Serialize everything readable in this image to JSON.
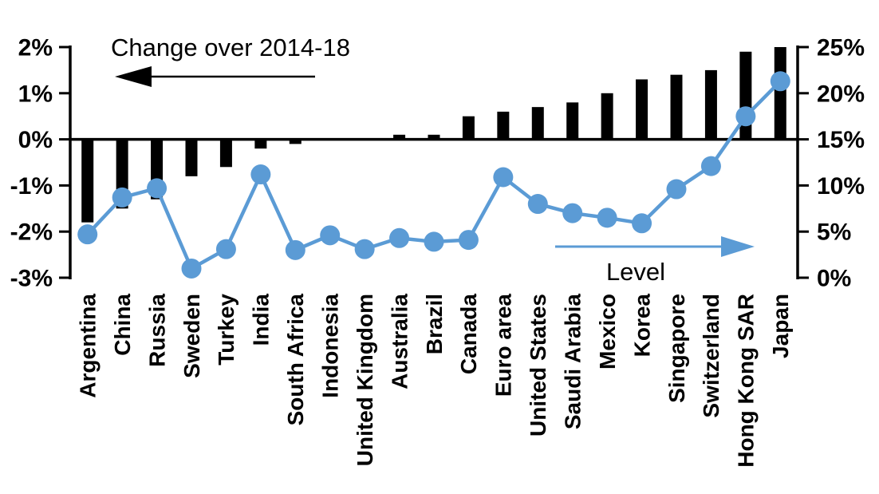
{
  "chart_data": {
    "type": "bar",
    "title": "",
    "xlabel": "",
    "ylabel_left": "Change over 2014-18",
    "ylabel_right": "Level",
    "grid": false,
    "legend_position": "none",
    "categories": [
      "Argentina",
      "China",
      "Russia",
      "Sweden",
      "Turkey",
      "India",
      "South Africa",
      "Indonesia",
      "United Kingdom",
      "Australia",
      "Brazil",
      "Canada",
      "Euro area",
      "United States",
      "Saudi Arabia",
      "Mexico",
      "Korea",
      "Singapore",
      "Switzerland",
      "Hong Kong SAR",
      "Japan"
    ],
    "series": [
      {
        "name": "Change over 2014-18",
        "kind": "bar",
        "axis": "left",
        "color": "#000000",
        "unit": "%",
        "values": [
          -1.8,
          -1.5,
          -1.3,
          -0.8,
          -0.6,
          -0.2,
          -0.1,
          0,
          0,
          0.1,
          0.1,
          0.5,
          0.6,
          0.7,
          0.8,
          1.0,
          1.3,
          1.4,
          1.5,
          1.9,
          2.0
        ]
      },
      {
        "name": "Level",
        "kind": "line",
        "axis": "right",
        "color": "#5B9BD5",
        "unit": "%",
        "values": [
          4.7,
          8.7,
          9.7,
          1.0,
          3.1,
          11.2,
          3.0,
          4.6,
          3.1,
          4.3,
          3.9,
          4.1,
          10.9,
          8.0,
          7.0,
          6.5,
          5.9,
          9.6,
          12.1,
          17.5,
          21.3
        ]
      }
    ],
    "left_axis": {
      "range": [
        -3,
        2
      ],
      "tick_values": [
        2,
        1,
        0,
        -1,
        -2,
        -3
      ],
      "tick_labels": [
        "2%",
        "1%",
        "0%",
        "-1%",
        "-2%",
        "-3%"
      ]
    },
    "right_axis": {
      "range": [
        0,
        25
      ],
      "tick_values": [
        25,
        20,
        15,
        10,
        5,
        0
      ],
      "tick_labels": [
        "25%",
        "20%",
        "15%",
        "10%",
        "5%",
        "0%"
      ]
    },
    "annotations": [
      {
        "text": "Change over 2014-18",
        "color": "#000000",
        "arrow_direction": "left",
        "arrow_color": "#000000"
      },
      {
        "text": "Level",
        "color": "#000000",
        "arrow_direction": "right",
        "arrow_color": "#5B9BD5"
      }
    ],
    "colors": {
      "bar": "#000000",
      "line": "#5B9BD5",
      "background": "#FFFFFF",
      "axis": "#000000"
    }
  }
}
